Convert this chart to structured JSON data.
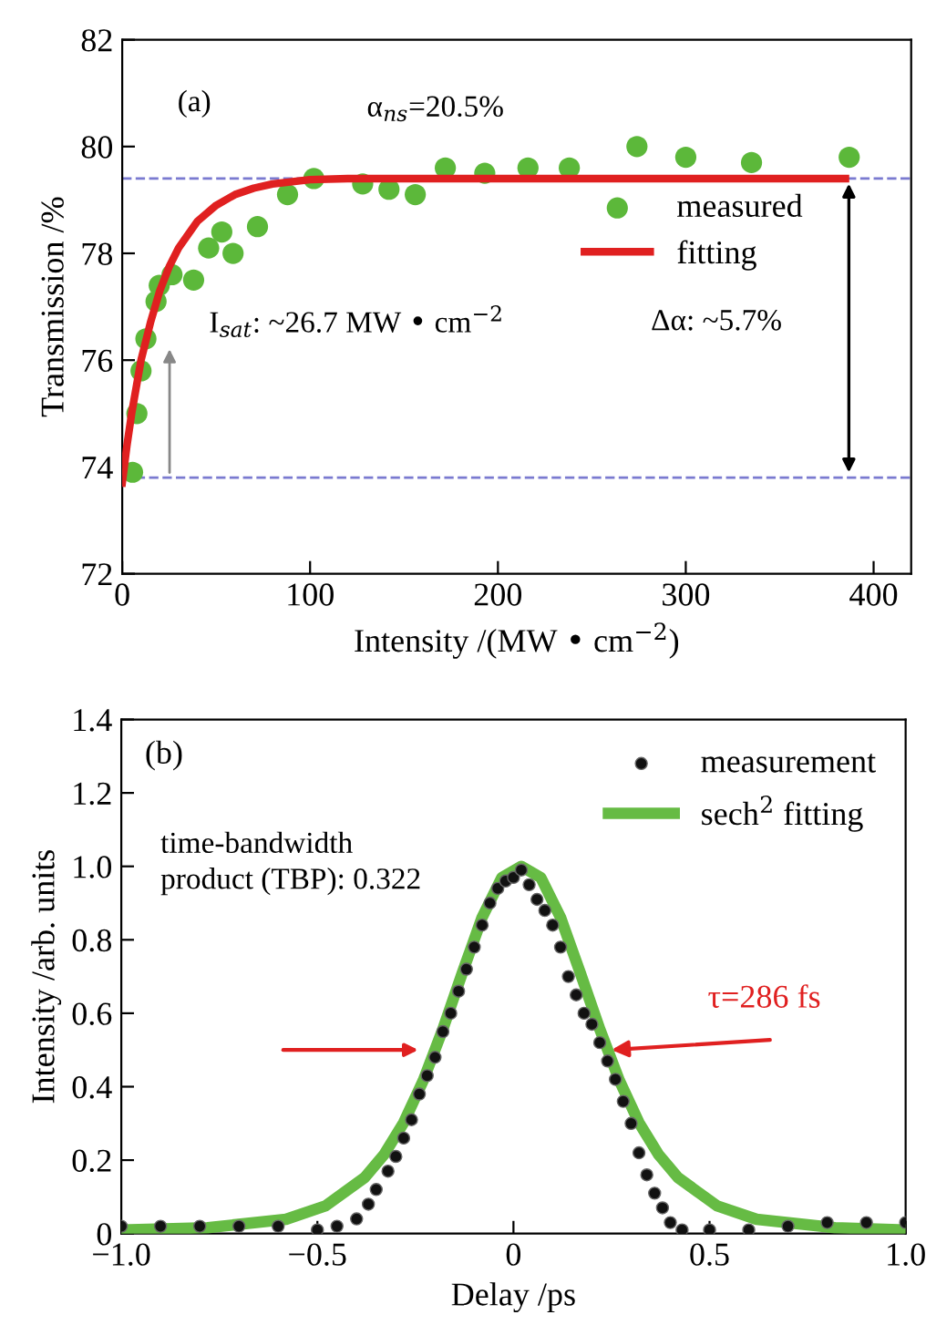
{
  "chart_data": [
    {
      "type": "scatter",
      "xlabel": "Intensity /(MW • cm$^{−2}$)",
      "ylabel": "Transmission /%",
      "xlim": [
        0,
        420
      ],
      "ylim": [
        72,
        82
      ],
      "xticks": [
        0,
        100,
        200,
        300,
        400
      ],
      "yticks": [
        72,
        74,
        76,
        78,
        80,
        82
      ],
      "grid": false,
      "legend": "right",
      "series": [
        {
          "name": "measured",
          "color": "#5cb83a",
          "marker": "circle",
          "x": [
            5.5,
            7.8,
            10,
            12.6,
            18,
            19.7,
            26.5,
            38,
            46,
            53,
            59,
            72,
            88,
            102,
            128,
            142,
            156,
            172,
            193,
            216,
            238,
            274,
            300,
            335,
            387
          ],
          "values": [
            73.9,
            75.0,
            75.8,
            76.4,
            77.1,
            77.4,
            77.6,
            77.5,
            78.1,
            78.4,
            78.0,
            78.5,
            79.1,
            79.4,
            79.3,
            79.2,
            79.1,
            79.6,
            79.5,
            79.6,
            79.6,
            80.0,
            79.8,
            79.7,
            79.8
          ]
        },
        {
          "name": "fitting",
          "color": "#e02020",
          "type": "line",
          "x": [
            0,
            2.5,
            5,
            7.5,
            10,
            15,
            20,
            25,
            30,
            40,
            50,
            60,
            70,
            80,
            100,
            120,
            385
          ],
          "values": [
            73.7,
            74.4,
            75.0,
            75.5,
            76.0,
            76.7,
            77.3,
            77.75,
            78.1,
            78.6,
            78.9,
            79.1,
            79.22,
            79.3,
            79.38,
            79.4,
            79.4
          ]
        }
      ],
      "ref_lines": [
        {
          "axis": "y",
          "value": 79.4,
          "color": "#7a7ad0",
          "line_style": "dashed"
        },
        {
          "axis": "y",
          "value": 73.8,
          "color": "#7a7ad0",
          "line_style": "dashed"
        }
      ],
      "annotations": [
        "(a)",
        "α$_{ns}$=20.5%",
        "I$_{sat}$: ~26.7 MW • cm$^{−2}$",
        "Δα: ~5.7%"
      ]
    },
    {
      "type": "scatter",
      "xlabel": "Delay /ps",
      "ylabel": "Intensity /arb. units",
      "xlim": [
        -1.0,
        1.0
      ],
      "ylim": [
        0,
        1.4
      ],
      "xticks": [
        {
          "value": -1.0,
          "label": "−1.0"
        },
        {
          "value": -0.5,
          "label": "−0.5"
        },
        0,
        0.5,
        {
          "value": 1.0,
          "label": "1.0"
        }
      ],
      "yticks": [
        0,
        0.2,
        0.4,
        0.6,
        0.8,
        {
          "value": 1.0,
          "label": "1.0"
        },
        1.2,
        1.4
      ],
      "grid": false,
      "legend": "top right",
      "series": [
        {
          "name": "measurement",
          "color": "#111111",
          "marker": "circle",
          "x": [
            -1.0,
            -0.9,
            -0.8,
            -0.7,
            -0.6,
            -0.5,
            -0.45,
            -0.4,
            -0.37,
            -0.35,
            -0.32,
            -0.3,
            -0.28,
            -0.26,
            -0.24,
            -0.22,
            -0.2,
            -0.18,
            -0.16,
            -0.14,
            -0.12,
            -0.1,
            -0.08,
            -0.06,
            -0.04,
            -0.02,
            0.0,
            0.02,
            0.04,
            0.06,
            0.08,
            0.1,
            0.12,
            0.14,
            0.16,
            0.18,
            0.2,
            0.22,
            0.24,
            0.26,
            0.28,
            0.3,
            0.32,
            0.34,
            0.36,
            0.38,
            0.4,
            0.43,
            0.5,
            0.6,
            0.7,
            0.8,
            0.9,
            1.0
          ],
          "values": [
            0.02,
            0.02,
            0.02,
            0.02,
            0.02,
            0.01,
            0.02,
            0.04,
            0.08,
            0.12,
            0.17,
            0.21,
            0.26,
            0.31,
            0.38,
            0.43,
            0.48,
            0.55,
            0.6,
            0.66,
            0.72,
            0.78,
            0.84,
            0.9,
            0.94,
            0.96,
            0.97,
            0.99,
            0.95,
            0.91,
            0.88,
            0.84,
            0.78,
            0.7,
            0.65,
            0.6,
            0.57,
            0.52,
            0.47,
            0.42,
            0.36,
            0.3,
            0.22,
            0.16,
            0.11,
            0.07,
            0.03,
            0.01,
            0.01,
            0.01,
            0.02,
            0.03,
            0.03,
            0.03
          ]
        },
        {
          "name": "sech$^{2}$ fitting",
          "color": "#66bb44",
          "type": "line",
          "x": [
            -1.0,
            -0.78,
            -0.58,
            -0.48,
            -0.38,
            -0.33,
            -0.28,
            -0.23,
            -0.18,
            -0.13,
            -0.08,
            -0.03,
            0.02,
            0.07,
            0.12,
            0.17,
            0.22,
            0.27,
            0.32,
            0.37,
            0.42,
            0.52,
            0.62,
            0.82,
            1.0
          ],
          "values": [
            0.01,
            0.016,
            0.039,
            0.075,
            0.152,
            0.215,
            0.302,
            0.417,
            0.557,
            0.711,
            0.861,
            0.969,
            1.0,
            0.969,
            0.861,
            0.711,
            0.557,
            0.417,
            0.302,
            0.215,
            0.152,
            0.075,
            0.039,
            0.016,
            0.01
          ]
        }
      ],
      "annotations": [
        "(b)",
        "time-bandwidth\nproduct (TBP): 0.322",
        {
          "text": "τ=286 fs",
          "x": 0.25,
          "y": 0.5
        }
      ]
    }
  ]
}
